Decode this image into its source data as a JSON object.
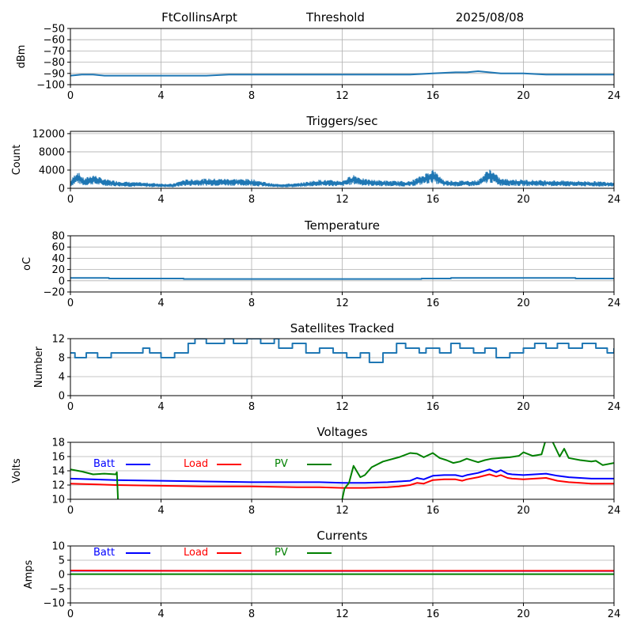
{
  "header": {
    "station": "FtCollinsArpt",
    "mode": "Threshold",
    "date": "2025/08/08"
  },
  "chart_data": [
    {
      "id": "signal",
      "type": "line",
      "title": "",
      "xlabel": "",
      "ylabel": "dBm",
      "xlim": [
        0,
        24
      ],
      "ylim": [
        -100,
        -50
      ],
      "xticks": [
        0,
        4,
        8,
        12,
        16,
        20,
        24
      ],
      "yticks": [
        -100,
        -90,
        -80,
        -70,
        -60,
        -50
      ],
      "grid": true,
      "series": [
        {
          "color": "#1f77b4",
          "style": "smooth",
          "x": [
            0,
            0.5,
            1,
            1.5,
            2,
            3,
            4,
            5,
            6,
            7,
            8,
            9,
            10,
            11,
            12,
            13,
            14,
            15,
            16,
            17,
            17.5,
            18,
            18.5,
            19,
            20,
            21,
            22,
            23,
            24
          ],
          "y": [
            -92,
            -91,
            -91,
            -92,
            -92,
            -92,
            -92,
            -92,
            -92,
            -91,
            -91,
            -91,
            -91,
            -91,
            -91,
            -91,
            -91,
            -91,
            -90,
            -89,
            -89,
            -88,
            -89,
            -90,
            -90,
            -91,
            -91,
            -91,
            -91
          ]
        }
      ]
    },
    {
      "id": "triggers",
      "type": "line",
      "title": "Triggers/sec",
      "xlabel": "",
      "ylabel": "Count",
      "xlim": [
        0,
        24
      ],
      "ylim": [
        0,
        12500
      ],
      "xticks": [
        0,
        4,
        8,
        12,
        16,
        20,
        24
      ],
      "yticks": [
        0,
        4000,
        8000,
        12000
      ],
      "grid": true,
      "series": [
        {
          "color": "#1f77b4",
          "style": "noisy",
          "x": [
            0,
            0.3,
            0.6,
            1,
            1.5,
            2,
            2.5,
            3,
            3.5,
            4,
            4.5,
            5,
            6,
            7,
            8,
            9,
            10,
            11,
            12,
            12.5,
            13,
            14,
            15,
            15.5,
            16,
            16.5,
            17,
            18,
            18.5,
            19,
            20,
            21,
            22,
            23,
            24
          ],
          "y": [
            1400,
            3300,
            1800,
            2600,
            1700,
            1400,
            1200,
            1100,
            1000,
            900,
            800,
            1600,
            1800,
            1800,
            1700,
            800,
            900,
            1600,
            1400,
            2600,
            1700,
            1400,
            1300,
            2400,
            3600,
            1500,
            1400,
            1500,
            3800,
            1800,
            1600,
            1500,
            1400,
            1300,
            1200
          ]
        }
      ]
    },
    {
      "id": "temperature",
      "type": "line",
      "title": "Temperature",
      "xlabel": "",
      "ylabel": "oC",
      "xlim": [
        0,
        24
      ],
      "ylim": [
        -20,
        80
      ],
      "xticks": [
        0,
        4,
        8,
        12,
        16,
        20,
        24
      ],
      "yticks": [
        -20,
        0,
        20,
        40,
        60,
        80
      ],
      "grid": true,
      "series": [
        {
          "color": "#1f77b4",
          "style": "step",
          "x": [
            0,
            1.7,
            5,
            15.5,
            16.8,
            22.3,
            24
          ],
          "y": [
            5,
            4,
            3,
            4,
            5,
            4,
            4
          ]
        }
      ]
    },
    {
      "id": "satellites",
      "type": "line",
      "title": "Satellites Tracked",
      "xlabel": "",
      "ylabel": "Number",
      "xlim": [
        0,
        24
      ],
      "ylim": [
        0,
        12
      ],
      "xticks": [
        0,
        4,
        8,
        12,
        16,
        20,
        24
      ],
      "yticks": [
        0,
        4,
        8,
        12
      ],
      "grid": true,
      "series": [
        {
          "color": "#1f77b4",
          "style": "step",
          "x": [
            0,
            0.2,
            0.7,
            1.2,
            1.8,
            2.5,
            3.2,
            3.5,
            4.0,
            4.6,
            5.2,
            5.5,
            6.0,
            6.8,
            7.2,
            7.8,
            8.4,
            9.0,
            9.2,
            9.8,
            10.4,
            11.0,
            11.6,
            12.2,
            12.8,
            13.2,
            13.8,
            14.4,
            14.8,
            15.4,
            15.7,
            16.3,
            16.8,
            17.2,
            17.8,
            18.3,
            18.8,
            19.4,
            20.0,
            20.5,
            21.0,
            21.5,
            22.0,
            22.6,
            23.2,
            23.7,
            24
          ],
          "y": [
            9,
            8,
            9,
            8,
            9,
            9,
            10,
            9,
            8,
            9,
            11,
            12,
            11,
            12,
            11,
            12,
            11,
            12,
            10,
            11,
            9,
            10,
            9,
            8,
            9,
            7,
            9,
            11,
            10,
            9,
            10,
            9,
            11,
            10,
            9,
            10,
            8,
            9,
            10,
            11,
            10,
            11,
            10,
            11,
            10,
            9,
            10
          ]
        }
      ]
    },
    {
      "id": "voltages",
      "type": "line",
      "title": "Voltages",
      "xlabel": "",
      "ylabel": "Volts",
      "xlim": [
        0,
        24
      ],
      "ylim": [
        10,
        18
      ],
      "xticks": [
        0,
        4,
        8,
        12,
        16,
        20,
        24
      ],
      "yticks": [
        10,
        12,
        14,
        16,
        18
      ],
      "grid": true,
      "legend": [
        "Batt",
        "Load",
        "PV"
      ],
      "series": [
        {
          "name": "Batt",
          "color": "#0000ff",
          "style": "smooth",
          "x": [
            0,
            2,
            4,
            6,
            8,
            10,
            11,
            12,
            13,
            14,
            14.5,
            15,
            15.3,
            15.6,
            16,
            16.5,
            17,
            17.3,
            17.5,
            18,
            18.5,
            18.8,
            19,
            19.3,
            19.5,
            20,
            20.5,
            21,
            21.5,
            22,
            22.5,
            23,
            23.5,
            24
          ],
          "y": [
            12.9,
            12.7,
            12.6,
            12.5,
            12.4,
            12.4,
            12.4,
            12.3,
            12.3,
            12.4,
            12.5,
            12.6,
            13.0,
            12.8,
            13.3,
            13.4,
            13.4,
            13.2,
            13.4,
            13.7,
            14.2,
            13.8,
            14.1,
            13.6,
            13.5,
            13.4,
            13.5,
            13.6,
            13.3,
            13.1,
            13.0,
            12.9,
            12.9,
            12.9
          ]
        },
        {
          "name": "Load",
          "color": "#ff0000",
          "style": "smooth",
          "x": [
            0,
            2,
            4,
            6,
            8,
            10,
            11,
            12,
            13,
            14,
            14.5,
            15,
            15.3,
            15.6,
            16,
            16.5,
            17,
            17.3,
            17.5,
            18,
            18.5,
            18.8,
            19,
            19.3,
            19.5,
            20,
            20.5,
            21,
            21.5,
            22,
            22.5,
            23,
            23.5,
            24
          ],
          "y": [
            12.2,
            12.0,
            11.9,
            11.8,
            11.8,
            11.7,
            11.7,
            11.6,
            11.6,
            11.7,
            11.8,
            12.0,
            12.3,
            12.2,
            12.7,
            12.8,
            12.8,
            12.6,
            12.8,
            13.1,
            13.5,
            13.2,
            13.4,
            13.0,
            12.9,
            12.8,
            12.9,
            13.0,
            12.6,
            12.4,
            12.3,
            12.2,
            12.2,
            12.2
          ]
        },
        {
          "name": "PV",
          "color": "#008000",
          "style": "smooth",
          "x": [
            0,
            0.5,
            1,
            1.5,
            2,
            2.05,
            2.1
          ],
          "y": [
            14.2,
            13.9,
            13.5,
            13.6,
            13.5,
            13.8,
            10.0
          ]
        },
        {
          "name": "PV",
          "color": "#008000",
          "style": "smooth",
          "x": [
            12,
            12.1,
            12.3,
            12.5,
            12.8,
            13,
            13.3,
            13.8,
            14.5,
            15,
            15.3,
            15.6,
            16,
            16.3,
            16.6,
            16.9,
            17.2,
            17.5,
            17.8,
            18,
            18.3,
            18.6,
            19,
            19.4,
            19.8,
            20,
            20.4,
            20.6,
            20.8,
            21,
            21.3,
            21.6,
            21.8,
            22,
            22.5,
            23,
            23.2,
            23.5,
            24
          ],
          "y": [
            10.0,
            11.5,
            12.3,
            14.7,
            13.1,
            13.4,
            14.5,
            15.3,
            15.9,
            16.5,
            16.4,
            15.9,
            16.5,
            15.8,
            15.5,
            15.1,
            15.3,
            15.7,
            15.4,
            15.2,
            15.5,
            15.7,
            15.8,
            15.9,
            16.1,
            16.6,
            16.1,
            16.2,
            16.3,
            18.5,
            18.0,
            16.0,
            17.1,
            15.8,
            15.5,
            15.3,
            15.4,
            14.8,
            15.1
          ]
        }
      ]
    },
    {
      "id": "currents",
      "type": "line",
      "title": "Currents",
      "xlabel": "",
      "ylabel": "Amps",
      "xlim": [
        0,
        24
      ],
      "ylim": [
        -10,
        10
      ],
      "xticks": [
        0,
        4,
        8,
        12,
        16,
        20,
        24
      ],
      "yticks": [
        -10,
        -5,
        0,
        5,
        10
      ],
      "grid": true,
      "legend": [
        "Batt",
        "Load",
        "PV"
      ],
      "series": [
        {
          "name": "Batt",
          "color": "#0000ff",
          "style": "smooth",
          "x": [
            0,
            4,
            8,
            12,
            16,
            20,
            24
          ],
          "y": [
            1.3,
            1.3,
            1.2,
            1.2,
            1.2,
            1.2,
            1.2
          ]
        },
        {
          "name": "Load",
          "color": "#ff0000",
          "style": "smooth",
          "x": [
            0,
            4,
            8,
            12,
            16,
            20,
            24
          ],
          "y": [
            1.4,
            1.3,
            1.3,
            1.3,
            1.3,
            1.3,
            1.3
          ]
        },
        {
          "name": "PV",
          "color": "#008000",
          "style": "smooth",
          "x": [
            0,
            4,
            8,
            12,
            16,
            20,
            24
          ],
          "y": [
            0.1,
            0.1,
            0.1,
            0.1,
            0.1,
            0.1,
            0.1
          ]
        }
      ]
    }
  ]
}
